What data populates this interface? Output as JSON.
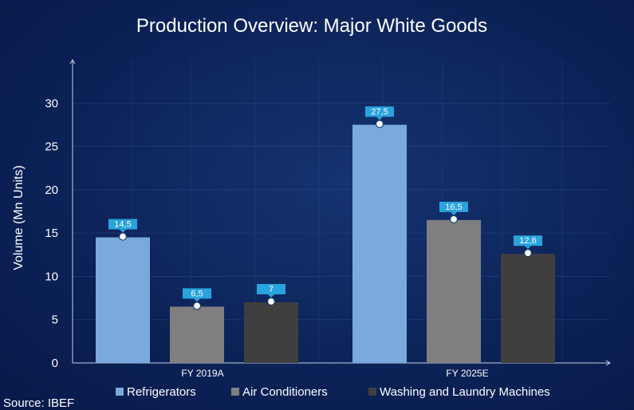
{
  "chart_data": {
    "type": "bar",
    "title": "Production Overview: Major White Goods",
    "ylabel": "Volume (Mn Units)",
    "xlabel": "",
    "ylim": [
      0,
      35
    ],
    "yticks": [
      0,
      5,
      10,
      15,
      20,
      25,
      30
    ],
    "categories": [
      "FY 2019A",
      "FY 2025E"
    ],
    "series": [
      {
        "name": "Refrigerators",
        "color": "#7aa9dd",
        "values": [
          14.5,
          27.5
        ],
        "labels": [
          "14,5",
          "27,5"
        ]
      },
      {
        "name": "Air Conditioners",
        "color": "#7f7f7f",
        "values": [
          6.5,
          16.5
        ],
        "labels": [
          "6,5",
          "16,5"
        ]
      },
      {
        "name": "Washing and Laundry Machines",
        "color": "#3f3f3f",
        "values": [
          7,
          12.6
        ],
        "labels": [
          "7",
          "12,6"
        ]
      }
    ],
    "legend_position": "bottom",
    "grid": true,
    "label_color": "#29a3de",
    "source": "Source: IBEF"
  }
}
